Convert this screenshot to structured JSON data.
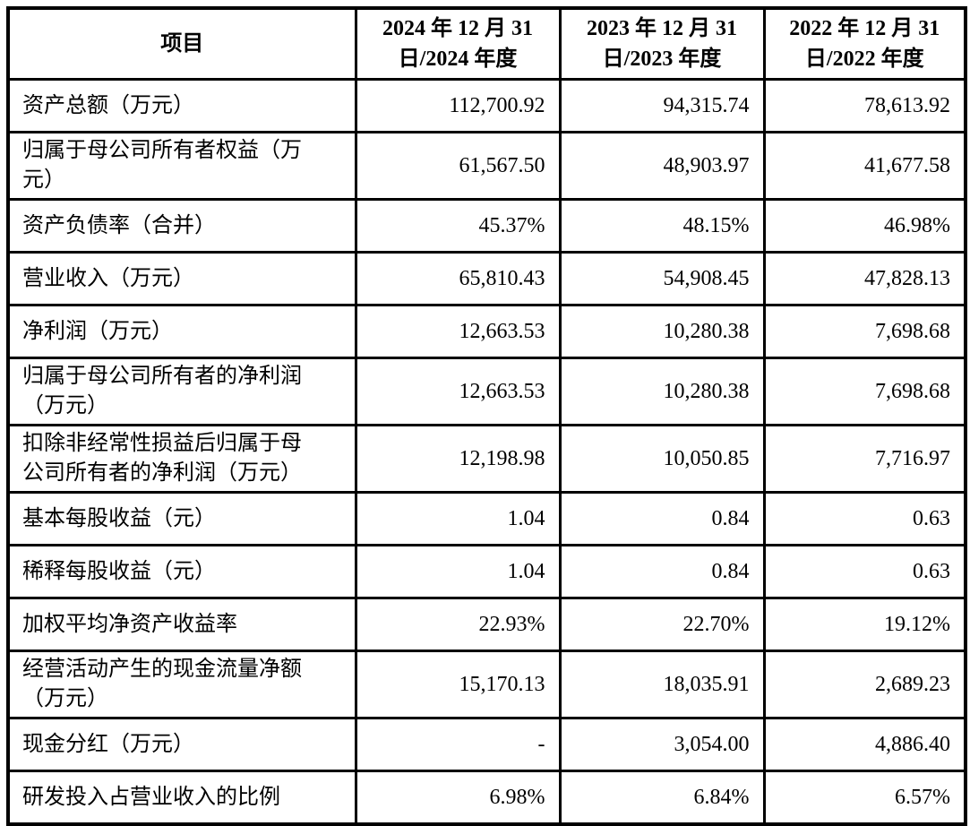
{
  "colors": {
    "border": "#000000",
    "text": "#000000",
    "background": "#ffffff"
  },
  "table": {
    "header": {
      "item_label": "项目",
      "columns": [
        "2024 年 12 月 31\n日/2024 年度",
        "2023 年 12 月 31\n日/2023 年度",
        "2022 年 12 月 31\n日/2022 年度"
      ]
    },
    "rows": [
      {
        "label": "资产总额（万元）",
        "values": [
          "112,700.92",
          "94,315.74",
          "78,613.92"
        ]
      },
      {
        "label": "归属于母公司所有者权益（万\n元）",
        "values": [
          "61,567.50",
          "48,903.97",
          "41,677.58"
        ]
      },
      {
        "label": "资产负债率（合并）",
        "values": [
          "45.37%",
          "48.15%",
          "46.98%"
        ]
      },
      {
        "label": "营业收入（万元）",
        "values": [
          "65,810.43",
          "54,908.45",
          "47,828.13"
        ]
      },
      {
        "label": "净利润（万元）",
        "values": [
          "12,663.53",
          "10,280.38",
          "7,698.68"
        ]
      },
      {
        "label": "归属于母公司所有者的净利润\n（万元）",
        "values": [
          "12,663.53",
          "10,280.38",
          "7,698.68"
        ]
      },
      {
        "label": "扣除非经常性损益后归属于母\n公司所有者的净利润（万元）",
        "values": [
          "12,198.98",
          "10,050.85",
          "7,716.97"
        ]
      },
      {
        "label": "基本每股收益（元）",
        "values": [
          "1.04",
          "0.84",
          "0.63"
        ]
      },
      {
        "label": "稀释每股收益（元）",
        "values": [
          "1.04",
          "0.84",
          "0.63"
        ]
      },
      {
        "label": "加权平均净资产收益率",
        "values": [
          "22.93%",
          "22.70%",
          "19.12%"
        ]
      },
      {
        "label": "经营活动产生的现金流量净额\n（万元）",
        "values": [
          "15,170.13",
          "18,035.91",
          "2,689.23"
        ]
      },
      {
        "label": "现金分红（万元）",
        "values": [
          "-",
          "3,054.00",
          "4,886.40"
        ]
      },
      {
        "label": "研发投入占营业收入的比例",
        "values": [
          "6.98%",
          "6.84%",
          "6.57%"
        ]
      }
    ]
  }
}
